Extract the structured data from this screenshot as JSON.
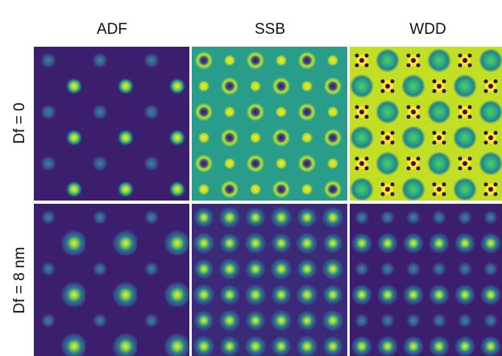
{
  "columns": [
    "ADF",
    "SSB",
    "WDD"
  ],
  "rows": [
    "Df = 0",
    "Df = 8 nm"
  ]
}
